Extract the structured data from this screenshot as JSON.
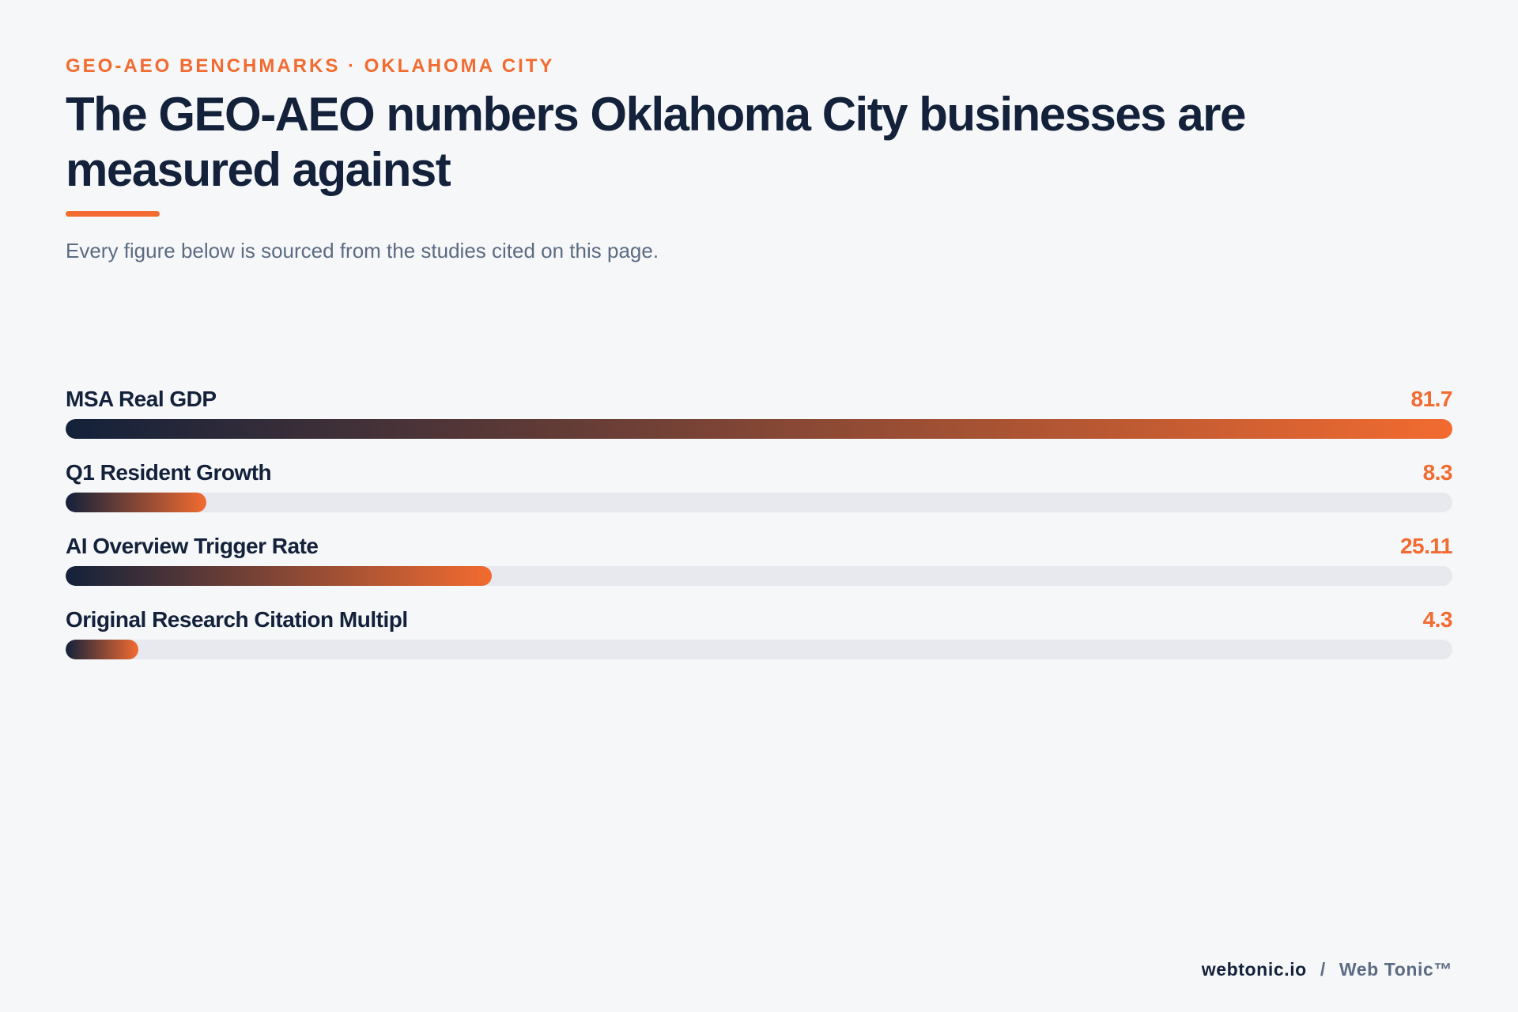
{
  "header": {
    "eyebrow": "GEO-AEO BENCHMARKS · OKLAHOMA CITY",
    "title": "The GEO-AEO numbers Oklahoma City businesses are measured against",
    "subtitle": "Every figure below is sourced from the studies cited on this page."
  },
  "colors": {
    "accent": "#f26b30",
    "navy": "#13213a",
    "muted": "#5b6b82",
    "track": "#e7e9ef",
    "background": "#f6f7f9"
  },
  "chart_data": {
    "type": "bar",
    "orientation": "horizontal",
    "categories": [
      "MSA Real GDP",
      "Q1 Resident Growth",
      "AI Overview Trigger Rate",
      "Original Research Citation Multipl"
    ],
    "value_labels": [
      "81.7",
      "8.3",
      "25.11",
      "4.3"
    ],
    "values": [
      81.7,
      8.3,
      25.11,
      4.3
    ],
    "xlim": [
      0,
      81.7
    ],
    "grid": false,
    "legend": "none"
  },
  "footer": {
    "domain": "webtonic.io",
    "separator": "/",
    "brand": "Web Tonic™"
  }
}
